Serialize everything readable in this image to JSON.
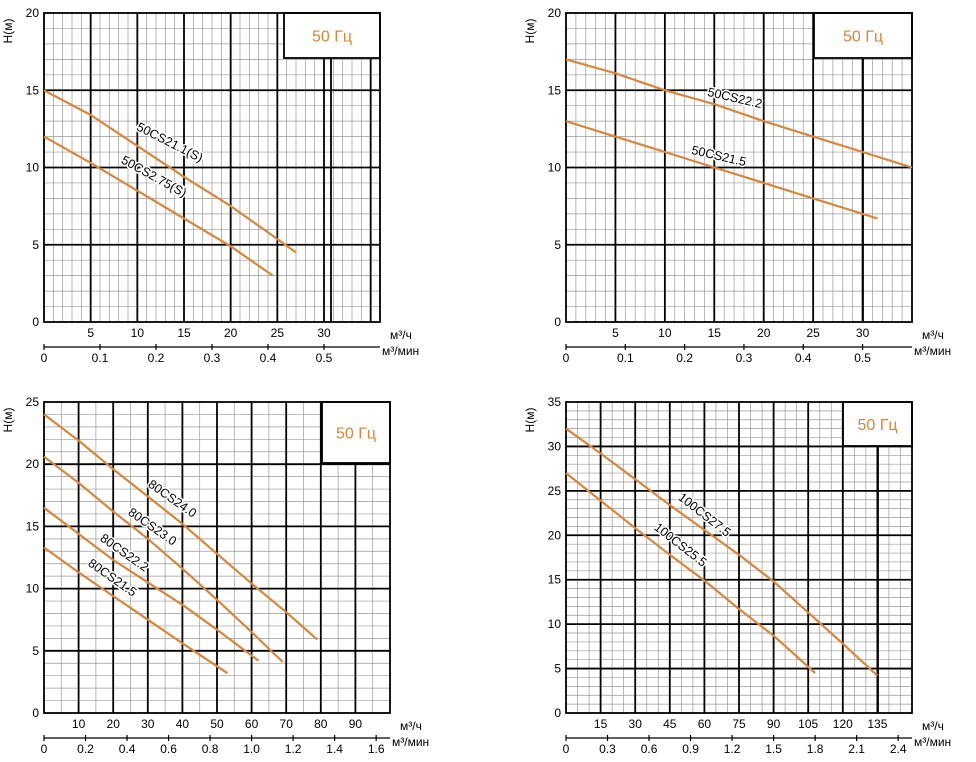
{
  "chart_data": [
    {
      "type": "line",
      "freq_label": "50 Гц",
      "ylabel": "Н(м)",
      "x_unit": "м³/ч",
      "x2_unit": "м³/мин",
      "xlim": [
        0,
        36
      ],
      "ylim": [
        0,
        20
      ],
      "x_ticks": [
        "5",
        "10",
        "15",
        "20",
        "25",
        "30"
      ],
      "x_tick_values": [
        5,
        10,
        15,
        20,
        25,
        30
      ],
      "x2_ticks": [
        "0",
        "0.1",
        "0.2",
        "0.3",
        "0.4",
        "0.5"
      ],
      "x2_tick_values": [
        0,
        6,
        12,
        18,
        24,
        30
      ],
      "y_ticks": [
        "0",
        "5",
        "10",
        "15",
        "20"
      ],
      "y_tick_values": [
        0,
        5,
        10,
        15,
        20
      ],
      "series": [
        {
          "name": "50CS21.1(S)",
          "x": [
            0,
            5,
            10,
            15,
            20,
            24,
            27
          ],
          "y": [
            15,
            13.4,
            11.4,
            9.4,
            7.5,
            5.8,
            4.5
          ]
        },
        {
          "name": "50CS2.75(S)",
          "x": [
            0,
            5,
            10,
            15,
            20,
            24.5
          ],
          "y": [
            12,
            10.3,
            8.5,
            6.7,
            4.9,
            3
          ]
        }
      ],
      "grid": true,
      "line_color": "#d8873a"
    },
    {
      "type": "line",
      "freq_label": "50 Гц",
      "ylabel": "Н(м)",
      "x_unit": "м³/ч",
      "x2_unit": "м³/мин",
      "xlim": [
        0,
        35
      ],
      "ylim": [
        0,
        20
      ],
      "x_ticks": [
        "5",
        "10",
        "15",
        "20",
        "25",
        "30"
      ],
      "x_tick_values": [
        5,
        10,
        15,
        20,
        25,
        30
      ],
      "x2_ticks": [
        "0",
        "0.1",
        "0.2",
        "0.3",
        "0.4",
        "0.5"
      ],
      "x2_tick_values": [
        0,
        6,
        12,
        18,
        24,
        30
      ],
      "y_ticks": [
        "0",
        "5",
        "10",
        "15",
        "20"
      ],
      "y_tick_values": [
        0,
        5,
        10,
        15,
        20
      ],
      "series": [
        {
          "name": "50CS22.2",
          "x": [
            0,
            5,
            10,
            15,
            20,
            25,
            30,
            35
          ],
          "y": [
            17,
            16.1,
            15,
            14.1,
            13,
            12,
            11,
            10
          ]
        },
        {
          "name": "50CS21.5",
          "x": [
            0,
            5,
            10,
            15,
            20,
            25,
            31.5
          ],
          "y": [
            13,
            12,
            11,
            10,
            9,
            8,
            6.7
          ]
        }
      ],
      "grid": true,
      "line_color": "#d8873a"
    },
    {
      "type": "line",
      "freq_label": "50 Гц",
      "ylabel": "Н(м)",
      "x_unit": "м³/ч",
      "x2_unit": "м³/мин",
      "xlim": [
        0,
        100
      ],
      "ylim": [
        0,
        25
      ],
      "x_ticks": [
        "10",
        "20",
        "30",
        "40",
        "50",
        "60",
        "70",
        "80",
        "90"
      ],
      "x_tick_values": [
        10,
        20,
        30,
        40,
        50,
        60,
        70,
        80,
        90
      ],
      "x2_ticks": [
        "0",
        "0.2",
        "0.4",
        "0.6",
        "0.8",
        "1.0",
        "1.2",
        "1.4",
        "1.6"
      ],
      "x2_tick_values": [
        0,
        12,
        24,
        36,
        48,
        60,
        72,
        84,
        96
      ],
      "y_ticks": [
        "0",
        "5",
        "10",
        "15",
        "20",
        "25"
      ],
      "y_tick_values": [
        0,
        5,
        10,
        15,
        20,
        25
      ],
      "series": [
        {
          "name": "80CS24.0",
          "x": [
            0,
            10,
            20,
            30,
            40,
            50,
            60,
            70,
            79
          ],
          "y": [
            24,
            21.9,
            19.6,
            17.4,
            15.2,
            12.8,
            10.4,
            8.1,
            5.9
          ]
        },
        {
          "name": "80CS23.0",
          "x": [
            0,
            10,
            20,
            30,
            40,
            50,
            60,
            69
          ],
          "y": [
            20.6,
            18.5,
            16.2,
            14,
            11.6,
            9.1,
            6.5,
            4.1
          ]
        },
        {
          "name": "80CS22.2",
          "x": [
            0,
            10,
            20,
            30,
            40,
            50,
            62
          ],
          "y": [
            16.5,
            14.4,
            12.3,
            10.5,
            8.7,
            6.7,
            4.2
          ]
        },
        {
          "name": "80CS21.5",
          "x": [
            0,
            10,
            20,
            30,
            40,
            53
          ],
          "y": [
            13.3,
            11.3,
            9.4,
            7.5,
            5.6,
            3.2
          ]
        }
      ],
      "grid": true,
      "line_color": "#d8873a"
    },
    {
      "type": "line",
      "freq_label": "50 Гц",
      "ylabel": "Н(м)",
      "x_unit": "м³/ч",
      "x2_unit": "м³/мин",
      "xlim": [
        0,
        150
      ],
      "ylim": [
        0,
        35
      ],
      "x_ticks": [
        "15",
        "30",
        "45",
        "60",
        "75",
        "90",
        "105",
        "120",
        "135"
      ],
      "x_tick_values": [
        15,
        30,
        45,
        60,
        75,
        90,
        105,
        120,
        135
      ],
      "x2_ticks": [
        "0",
        "0.3",
        "0.6",
        "0.9",
        "1.2",
        "1.5",
        "1.8",
        "2.1",
        "2.4"
      ],
      "x2_tick_values": [
        0,
        18,
        36,
        54,
        72,
        90,
        108,
        126,
        144
      ],
      "y_ticks": [
        "0",
        "5",
        "10",
        "15",
        "20",
        "25",
        "30",
        "35"
      ],
      "y_tick_values": [
        0,
        5,
        10,
        15,
        20,
        25,
        30,
        35
      ],
      "series": [
        {
          "name": "100CS27.5",
          "x": [
            0,
            15,
            30,
            45,
            60,
            75,
            90,
            105,
            120,
            135
          ],
          "y": [
            32,
            29.2,
            26.3,
            23.4,
            20.6,
            17.8,
            14.8,
            11.3,
            7.8,
            4.2
          ]
        },
        {
          "name": "100CS25.5",
          "x": [
            0,
            15,
            30,
            45,
            60,
            75,
            90,
            108
          ],
          "y": [
            27,
            23.9,
            20.8,
            17.8,
            14.9,
            11.7,
            8.7,
            4.5
          ]
        }
      ],
      "grid": true,
      "line_color": "#d8873a"
    }
  ]
}
